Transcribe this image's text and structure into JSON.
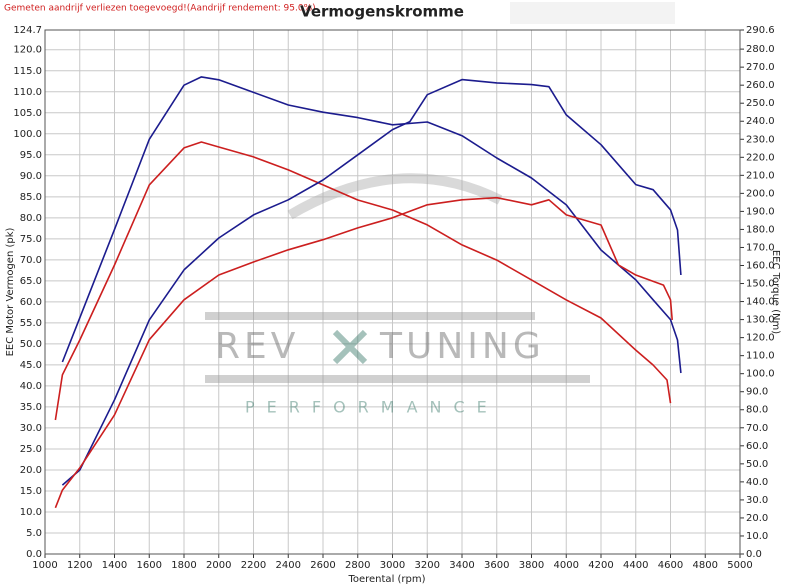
{
  "chart_data": {
    "type": "line",
    "title": "Vermogenskromme",
    "subtitle": "Gemeten aandrijf verliezen toegevoegd!(Aandrijf rendement: 95.0%)",
    "x_label": "Toerental (rpm)",
    "y_label": "EEC Motor Vermogen (pk)",
    "y2_label": "EEC Torque (Nm)",
    "watermark": [
      "REV",
      "TUNING",
      "PERFORMANCE"
    ],
    "grid": true,
    "xlim": [
      1000,
      5000
    ],
    "xticks": [
      1000,
      1200,
      1400,
      1600,
      1800,
      2000,
      2200,
      2400,
      2600,
      2800,
      3000,
      3200,
      3400,
      3600,
      3800,
      4000,
      4200,
      4400,
      4600,
      4800,
      5000
    ],
    "ylim": [
      0,
      124.7
    ],
    "yticks": [
      {
        "value": 0,
        "label": "0.0"
      },
      {
        "value": 5,
        "label": "5.0"
      },
      {
        "value": 10,
        "label": "10.0"
      },
      {
        "value": 15,
        "label": "15.0"
      },
      {
        "value": 20,
        "label": "20.0"
      },
      {
        "value": 25,
        "label": "25.0"
      },
      {
        "value": 30,
        "label": "30.0"
      },
      {
        "value": 35,
        "label": "35.0"
      },
      {
        "value": 40,
        "label": "40.0"
      },
      {
        "value": 45,
        "label": "45.0"
      },
      {
        "value": 50,
        "label": "50.0"
      },
      {
        "value": 55,
        "label": "55.0"
      },
      {
        "value": 60,
        "label": "60.0"
      },
      {
        "value": 65,
        "label": "65.0"
      },
      {
        "value": 70,
        "label": "70.0"
      },
      {
        "value": 75,
        "label": "75.0"
      },
      {
        "value": 80,
        "label": "80.0"
      },
      {
        "value": 85,
        "label": "85.0"
      },
      {
        "value": 90,
        "label": "90.0"
      },
      {
        "value": 95,
        "label": "95.0"
      },
      {
        "value": 100,
        "label": "100.0"
      },
      {
        "value": 105,
        "label": "105.0"
      },
      {
        "value": 110,
        "label": "110.0"
      },
      {
        "value": 115,
        "label": "115.0"
      },
      {
        "value": 120,
        "label": "120.0"
      },
      124.7
    ],
    "y2lim": [
      0,
      290.6
    ],
    "y2ticks": [
      {
        "value": 0,
        "label": "0.0"
      },
      {
        "value": 10,
        "label": "10.0"
      },
      {
        "value": 20,
        "label": "20.0"
      },
      {
        "value": 30,
        "label": "30.0"
      },
      {
        "value": 40,
        "label": "40.0"
      },
      {
        "value": 50,
        "label": "50.0"
      },
      {
        "value": 60,
        "label": "60.0"
      },
      {
        "value": 70,
        "label": "70.0"
      },
      {
        "value": 80,
        "label": "80.0"
      },
      {
        "value": 90,
        "label": "90.0"
      },
      {
        "value": 100,
        "label": "100.0"
      },
      {
        "value": 110,
        "label": "110.0"
      },
      {
        "value": 120,
        "label": "120.0"
      },
      {
        "value": 130,
        "label": "130.0"
      },
      {
        "value": 140,
        "label": "140.0"
      },
      {
        "value": 150,
        "label": "150.0"
      },
      {
        "value": 160,
        "label": "160.0"
      },
      {
        "value": 170,
        "label": "170.0"
      },
      {
        "value": 180,
        "label": "180.0"
      },
      {
        "value": 190,
        "label": "190.0"
      },
      {
        "value": 200,
        "label": "200.0"
      },
      {
        "value": 210,
        "label": "210.0"
      },
      {
        "value": 220,
        "label": "220.0"
      },
      {
        "value": 230,
        "label": "230.0"
      },
      {
        "value": 240,
        "label": "240.0"
      },
      {
        "value": 250,
        "label": "250.0"
      },
      {
        "value": 260,
        "label": "260.0"
      },
      {
        "value": 270,
        "label": "270.0"
      },
      {
        "value": 280,
        "label": "280.0"
      },
      290.6
    ],
    "series": [
      {
        "color": "#1c1c8e",
        "axis": "y2",
        "x": [
          1100,
          1200,
          1400,
          1600,
          1800,
          1900,
          2000,
          2200,
          2400,
          2600,
          2800,
          3000,
          3200,
          3400,
          3600,
          3800,
          4000,
          4200,
          4400,
          4500,
          4600,
          4640,
          4660
        ],
        "values": [
          106.5,
          131,
          180,
          230,
          260,
          264.6,
          263,
          256,
          249,
          245,
          242,
          238,
          239.6,
          232,
          219.6,
          208.5,
          193.6,
          168.6,
          152,
          141,
          130,
          118.7,
          100.4
        ]
      },
      {
        "color": "#cc1f1f",
        "axis": "y2",
        "x": [
          1060,
          1100,
          1200,
          1400,
          1600,
          1800,
          1900,
          2000,
          2200,
          2400,
          2600,
          2800,
          3000,
          3200,
          3400,
          3600,
          3800,
          4000,
          4200,
          4400,
          4500,
          4580,
          4600
        ],
        "values": [
          74.3,
          99.3,
          118.7,
          160.3,
          204.7,
          225.2,
          228.5,
          225.7,
          220.2,
          213,
          204.7,
          196.3,
          190.8,
          182.5,
          171.4,
          163,
          152,
          140.9,
          130.9,
          113.1,
          104.8,
          96.5,
          83.7
        ]
      },
      {
        "color": "#1c1c8e",
        "x": [
          1100,
          1200,
          1400,
          1600,
          1800,
          2000,
          2200,
          2400,
          2600,
          2800,
          3000,
          3100,
          3200,
          3400,
          3600,
          3800,
          3900,
          4000,
          4200,
          4400,
          4500,
          4600,
          4640,
          4660
        ],
        "values": [
          16.4,
          20,
          36.7,
          55.7,
          67.6,
          75.2,
          80.7,
          84.3,
          89,
          95,
          101,
          102.9,
          109.3,
          112.9,
          112.1,
          111.7,
          111.2,
          104.5,
          97.4,
          87.9,
          86.7,
          81.9,
          77.1,
          66.4
        ]
      },
      {
        "color": "#cc1f1f",
        "x": [
          1060,
          1100,
          1200,
          1400,
          1600,
          1800,
          2000,
          2200,
          2400,
          2600,
          2800,
          3000,
          3200,
          3400,
          3600,
          3800,
          3900,
          4000,
          4200,
          4300,
          4400,
          4560,
          4600,
          4610
        ],
        "values": [
          11,
          15.2,
          20.5,
          33.1,
          51,
          60.5,
          66.4,
          69.5,
          72.4,
          74.8,
          77.6,
          80,
          83.1,
          84.3,
          84.8,
          83.1,
          84.3,
          80.7,
          78.3,
          68.8,
          66.4,
          64,
          60.5,
          55.7
        ]
      }
    ]
  }
}
